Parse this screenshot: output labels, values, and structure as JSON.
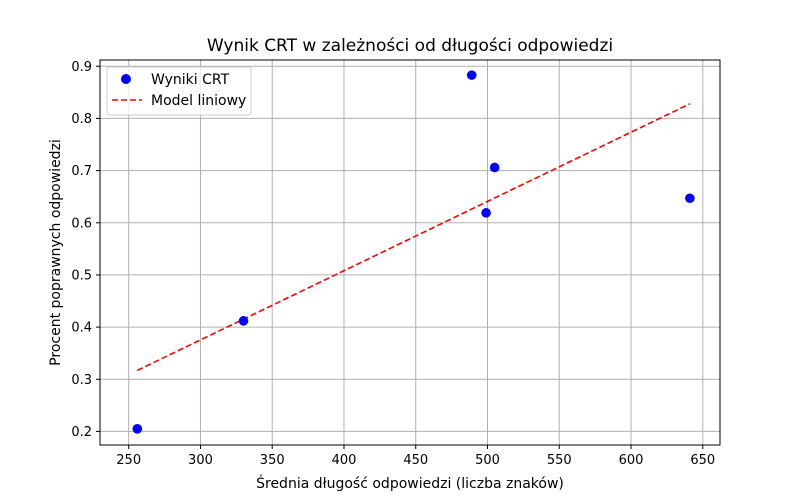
{
  "chart_data": {
    "type": "scatter",
    "title": "Wynik CRT w zależności od długości odpowiedzi",
    "xlabel": "Średnia długość odpowiedzi (liczba znaków)",
    "ylabel": "Procent poprawnych odpowiedzi",
    "xlim": [
      230,
      662
    ],
    "ylim": [
      0.174,
      0.912
    ],
    "xticks": [
      250,
      300,
      350,
      400,
      450,
      500,
      550,
      600,
      650
    ],
    "yticks": [
      0.2,
      0.3,
      0.4,
      0.5,
      0.6,
      0.7,
      0.8,
      0.9
    ],
    "grid": true,
    "legend_position": "top-left",
    "series": [
      {
        "name": "Wyniki CRT",
        "kind": "scatter",
        "color": "#0000ff",
        "points": [
          {
            "x": 256,
            "y": 0.205
          },
          {
            "x": 330,
            "y": 0.412
          },
          {
            "x": 489,
            "y": 0.883
          },
          {
            "x": 499,
            "y": 0.619
          },
          {
            "x": 505,
            "y": 0.706
          },
          {
            "x": 641,
            "y": 0.647
          }
        ]
      },
      {
        "name": "Model liniowy",
        "kind": "line",
        "style": "dashed",
        "color": "#ff0000",
        "points": [
          {
            "x": 256,
            "y": 0.317
          },
          {
            "x": 641,
            "y": 0.828
          }
        ]
      }
    ]
  }
}
